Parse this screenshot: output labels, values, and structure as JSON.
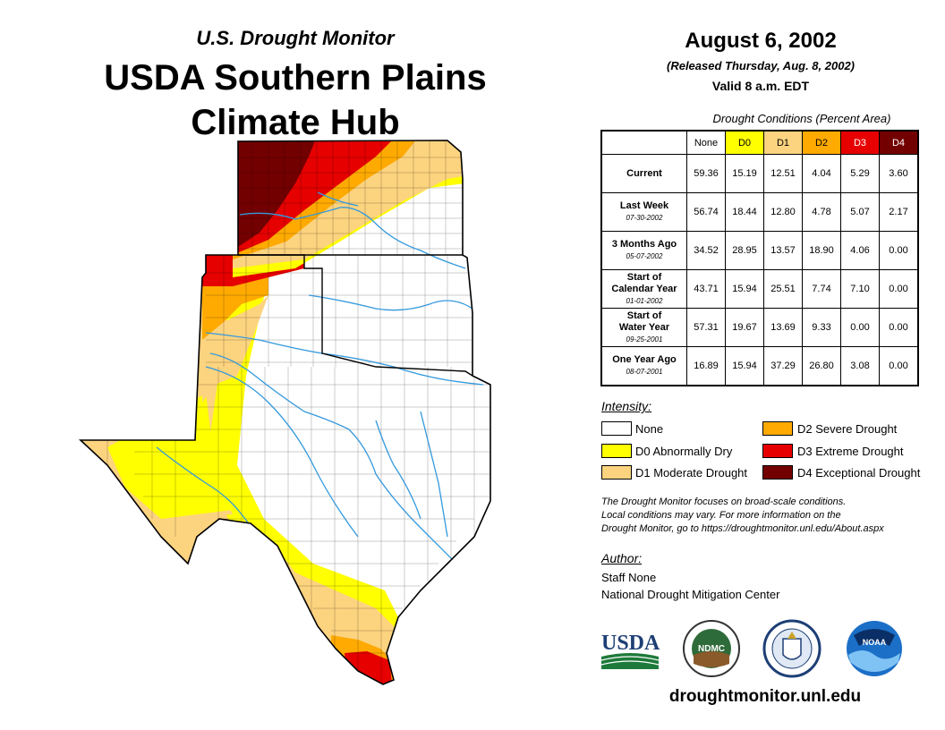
{
  "header": {
    "subtitle": "U.S. Drought Monitor",
    "title_line1": "USDA Southern Plains",
    "title_line2": "Climate Hub"
  },
  "info": {
    "date": "August 6, 2002",
    "released": "(Released Thursday, Aug. 8, 2002)",
    "valid": "Valid 8 a.m. EDT"
  },
  "table": {
    "caption": "Drought Conditions (Percent Area)",
    "columns": [
      {
        "label": "None",
        "color": "#ffffff",
        "text": "#000000"
      },
      {
        "label": "D0",
        "color": "#ffff00",
        "text": "#000000"
      },
      {
        "label": "D1",
        "color": "#fcd37f",
        "text": "#000000"
      },
      {
        "label": "D2",
        "color": "#ffaa00",
        "text": "#000000"
      },
      {
        "label": "D3",
        "color": "#e60000",
        "text": "#ffffff"
      },
      {
        "label": "D4",
        "color": "#730000",
        "text": "#ffffff"
      }
    ],
    "rows": [
      {
        "label": "Current",
        "label2": "",
        "date": "",
        "values": [
          "59.36",
          "15.19",
          "12.51",
          "4.04",
          "5.29",
          "3.60"
        ]
      },
      {
        "label": "Last Week",
        "label2": "",
        "date": "07-30-2002",
        "values": [
          "56.74",
          "18.44",
          "12.80",
          "4.78",
          "5.07",
          "2.17"
        ]
      },
      {
        "label": "3 Months Ago",
        "label2": "",
        "date": "05-07-2002",
        "values": [
          "34.52",
          "28.95",
          "13.57",
          "18.90",
          "4.06",
          "0.00"
        ]
      },
      {
        "label": "Start of",
        "label2": "Calendar Year",
        "date": "01-01-2002",
        "values": [
          "43.71",
          "15.94",
          "25.51",
          "7.74",
          "7.10",
          "0.00"
        ]
      },
      {
        "label": "Start of",
        "label2": "Water Year",
        "date": "09-25-2001",
        "values": [
          "57.31",
          "19.67",
          "13.69",
          "9.33",
          "0.00",
          "0.00"
        ]
      },
      {
        "label": "One Year Ago",
        "label2": "",
        "date": "08-07-2001",
        "values": [
          "16.89",
          "15.94",
          "37.29",
          "26.80",
          "3.08",
          "0.00"
        ]
      }
    ]
  },
  "legend": {
    "title": "Intensity:",
    "items": [
      {
        "label": "None",
        "color": "#ffffff"
      },
      {
        "label": "D0 Abnormally Dry",
        "color": "#ffff00"
      },
      {
        "label": "D1 Moderate Drought",
        "color": "#fcd37f"
      },
      {
        "label": "D2 Severe Drought",
        "color": "#ffaa00"
      },
      {
        "label": "D3 Extreme Drought",
        "color": "#e60000"
      },
      {
        "label": "D4 Exceptional Drought",
        "color": "#730000"
      }
    ]
  },
  "note": {
    "line1": "The Drought Monitor focuses on broad-scale conditions.",
    "line2": "Local conditions may vary. For more information on the",
    "line3": "Drought Monitor, go to https://droughtmonitor.unl.edu/About.aspx"
  },
  "author": {
    "heading": "Author:",
    "name": "Staff None",
    "org": "National Drought Mitigation Center"
  },
  "logos": {
    "usda": "USDA",
    "ndmc": "NDMC",
    "noaa": "NOAA"
  },
  "footer": {
    "url": "droughtmonitor.unl.edu"
  }
}
